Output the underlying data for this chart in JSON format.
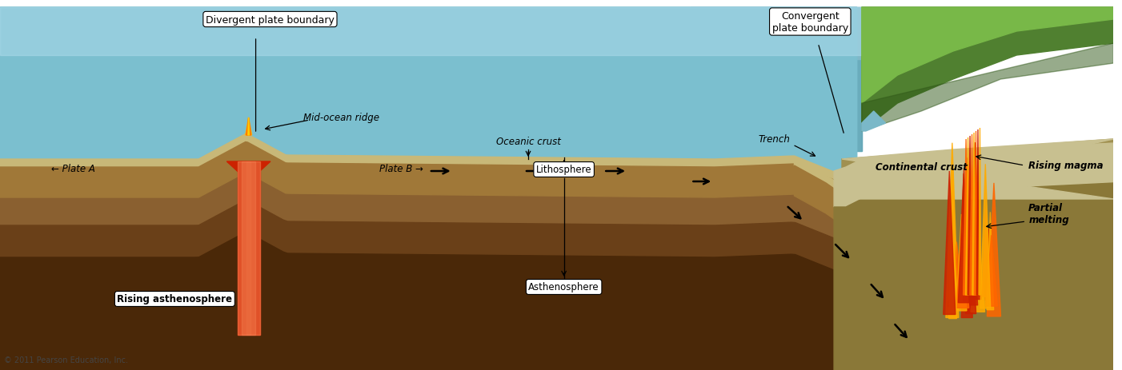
{
  "copyright": "© 2011 Pearson Education, Inc.",
  "bg": "#ffffff",
  "ocean_mid": "#7bbfcf",
  "ocean_light": "#a8d8e8",
  "ocean_dark": "#5a9aaa",
  "litho_top": "#c8b878",
  "litho_body": "#a07838",
  "asth_top": "#8a6030",
  "asth_mid": "#6a4018",
  "asth_dark": "#4a2808",
  "cont_light": "#c8c090",
  "cont_mid": "#a09050",
  "cont_body": "#8a7838",
  "green_light": "#78b848",
  "green_mid": "#508030",
  "green_dark": "#305818",
  "fire_orange": "#ff6600",
  "fire_red": "#cc2200",
  "fire_yellow": "#ffaa00",
  "fig_width": 14.02,
  "fig_height": 4.64,
  "dpi": 100,
  "labels": {
    "divergent_boundary": "Divergent plate boundary",
    "convergent_boundary": "Convergent\nplate boundary",
    "mid_ocean_ridge": "Mid-ocean ridge",
    "oceanic_crust": "Oceanic crust",
    "lithosphere": "Lithosphere",
    "asthenosphere": "Asthenosphere",
    "trench": "Trench",
    "rising_asth": "Rising asthenosphere",
    "rising_magma": "Rising magma",
    "partial_melting": "Partial\nmelting",
    "plate_a": "← Plate A",
    "plate_b": "Plate B →",
    "continental_crust": "Continental crust"
  }
}
